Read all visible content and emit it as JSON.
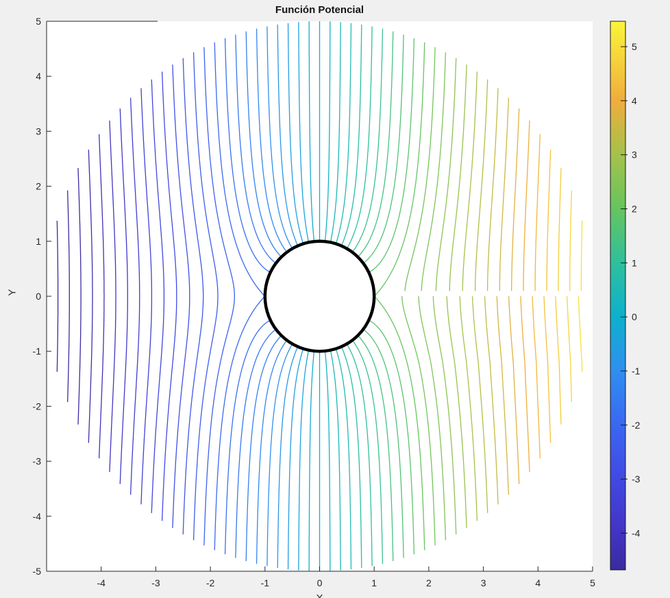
{
  "figure": {
    "background": "#f0f0f0",
    "axes_background": "#ffffff"
  },
  "chart_data": {
    "type": "contour",
    "title": "Función Potencial",
    "xlabel": "X",
    "ylabel": "Y",
    "xlim": [
      -5,
      5
    ],
    "ylim": [
      -5,
      5
    ],
    "x_ticks": [
      {
        "v": -4,
        "label": "-4"
      },
      {
        "v": -3,
        "label": "-3"
      },
      {
        "v": -2,
        "label": "-2"
      },
      {
        "v": -1,
        "label": "-1"
      },
      {
        "v": 0,
        "label": "0"
      },
      {
        "v": 1,
        "label": "1"
      },
      {
        "v": 2,
        "label": "2"
      },
      {
        "v": 3,
        "label": "3"
      },
      {
        "v": 4,
        "label": "4"
      },
      {
        "v": 5,
        "label": "5"
      }
    ],
    "y_ticks": [
      {
        "v": 5,
        "label": "5"
      },
      {
        "v": 4,
        "label": "4"
      },
      {
        "v": 3,
        "label": "3"
      },
      {
        "v": 2,
        "label": "2"
      },
      {
        "v": 1,
        "label": "1"
      },
      {
        "v": 0,
        "label": "0"
      },
      {
        "v": -1,
        "label": "-1"
      },
      {
        "v": -2,
        "label": "-2"
      },
      {
        "v": -3,
        "label": "-3"
      },
      {
        "v": -4,
        "label": "-4"
      },
      {
        "v": -5,
        "label": "-5"
      }
    ],
    "potential_function": "Phi(x,y) = x*(1 + R^2/(x^2+y^2))  (uniform flow past a unit cylinder)",
    "cylinder_radius": 1,
    "outer_radius": 5,
    "contour_levels": {
      "min": -5,
      "max": 5,
      "step": 0.2,
      "count": 51
    },
    "color_limits": [
      -4.68,
      5.47
    ],
    "colorbar_ticks": [
      {
        "v": 5,
        "label": "5"
      },
      {
        "v": 4,
        "label": "4"
      },
      {
        "v": 3,
        "label": "3"
      },
      {
        "v": 2,
        "label": "2"
      },
      {
        "v": 1,
        "label": "1"
      },
      {
        "v": 0,
        "label": "0"
      },
      {
        "v": -1,
        "label": "-1"
      },
      {
        "v": -2,
        "label": "-2"
      },
      {
        "v": -3,
        "label": "-3"
      },
      {
        "v": -4,
        "label": "-4"
      }
    ],
    "colormap": {
      "name": "parula",
      "stops": [
        {
          "f": 0.0,
          "c": "#392b9e"
        },
        {
          "f": 0.067,
          "c": "#4233c4"
        },
        {
          "f": 0.166,
          "c": "#4149e2"
        },
        {
          "f": 0.264,
          "c": "#3a67f2"
        },
        {
          "f": 0.363,
          "c": "#2f8ff0"
        },
        {
          "f": 0.461,
          "c": "#0db0cd"
        },
        {
          "f": 0.56,
          "c": "#2ec09c"
        },
        {
          "f": 0.659,
          "c": "#67c45e"
        },
        {
          "f": 0.757,
          "c": "#a4c24a"
        },
        {
          "f": 0.856,
          "c": "#f0ad3d"
        },
        {
          "f": 0.954,
          "c": "#f7df3a"
        },
        {
          "f": 1.0,
          "c": "#f9f53a"
        }
      ]
    },
    "seam": {
      "side": "right",
      "gap_top": 0.09,
      "min_level": 2.02,
      "offset": 0.05,
      "offset_decay": 1.2
    },
    "colors": {
      "axis": "#262626",
      "cylinder_stroke": "#000000",
      "colorbar_border": "#1a1a1a"
    }
  }
}
